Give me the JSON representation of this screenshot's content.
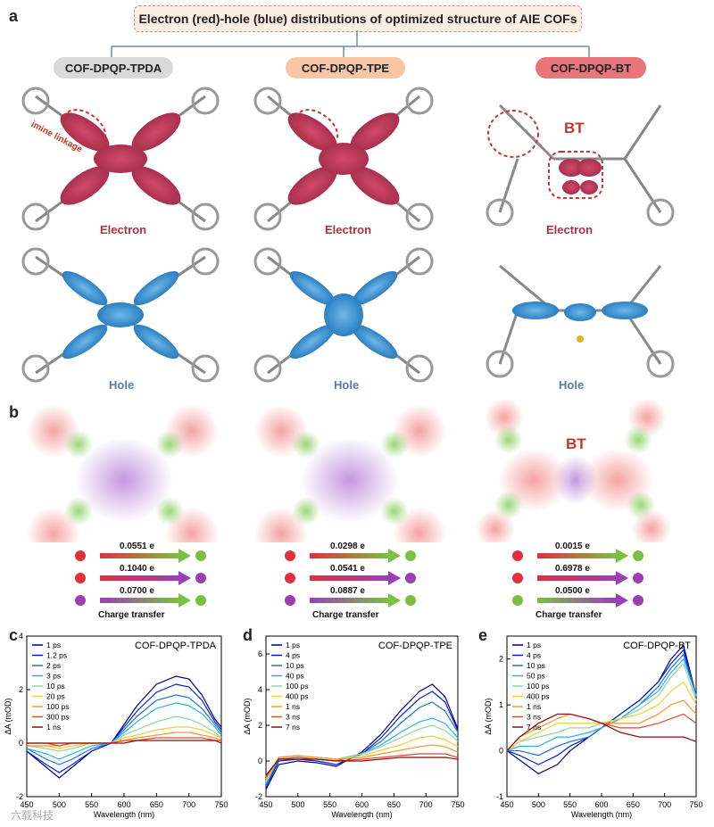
{
  "panels": {
    "a": "a",
    "b": "b",
    "c": "c",
    "d": "d",
    "e": "e"
  },
  "banner": "Electron (red)-hole (blue) distributions of optimized structure of AIE COFs",
  "cofs": [
    {
      "name": "COF-DPQP-TPDA",
      "tag_color": "#d9d9d9"
    },
    {
      "name": "COF-DPQP-TPE",
      "tag_color": "#f7c6a5"
    },
    {
      "name": "COF-DPQP-BT",
      "tag_color": "#e8747c"
    }
  ],
  "labels": {
    "electron": "Electron",
    "hole": "Hole",
    "imine": "imine linkage",
    "bt": "BT",
    "charge_transfer": "Charge transfer"
  },
  "transfers": [
    [
      "0.0551 e",
      "0.1040 e",
      "0.0700 e"
    ],
    [
      "0.0298 e",
      "0.0541 e",
      "0.0887 e"
    ],
    [
      "0.0015 e",
      "0.6978 e",
      "0.0500 e"
    ]
  ],
  "transfer_colors": [
    [
      [
        "#e03040",
        "#7bc043"
      ],
      [
        "#e03040",
        "#9b3fb5"
      ],
      [
        "#9b3fb5",
        "#7bc043"
      ]
    ],
    [
      [
        "#e03040",
        "#7bc043"
      ],
      [
        "#e03040",
        "#9b3fb5"
      ],
      [
        "#9b3fb5",
        "#7bc043"
      ]
    ],
    [
      [
        "#e03040",
        "#7bc043"
      ],
      [
        "#e03040",
        "#9b3fb5"
      ],
      [
        "#7bc043",
        "#9b3fb5"
      ]
    ]
  ],
  "watermark": "六载科技",
  "chart_data": [
    {
      "type": "line",
      "title": "COF-DPQP-TPDA",
      "xlabel": "Wavelength (nm)",
      "ylabel": "ΔA (mOD)",
      "xlim": [
        450,
        750
      ],
      "ylim": [
        -2,
        4
      ],
      "xticks": [
        450,
        500,
        550,
        600,
        650,
        700,
        750
      ],
      "yticks": [
        -2,
        0,
        2,
        4
      ],
      "legend_position": "top-left",
      "x": [
        450,
        480,
        500,
        520,
        550,
        580,
        600,
        620,
        650,
        680,
        700,
        720,
        740,
        750
      ],
      "series": [
        {
          "name": "1 ps",
          "color": "#000080",
          "values": [
            -0.3,
            -0.9,
            -1.3,
            -0.9,
            -0.3,
            0.0,
            0.7,
            1.4,
            2.2,
            2.5,
            2.4,
            1.8,
            0.9,
            0.6
          ]
        },
        {
          "name": "1.2 ps",
          "color": "#0022cc",
          "values": [
            -0.3,
            -0.8,
            -1.1,
            -0.8,
            -0.3,
            0.0,
            0.6,
            1.2,
            1.9,
            2.2,
            2.1,
            1.6,
            0.8,
            0.5
          ]
        },
        {
          "name": "2 ps",
          "color": "#1f6fe0",
          "values": [
            -0.2,
            -0.6,
            -0.8,
            -0.6,
            -0.2,
            0.0,
            0.5,
            1.0,
            1.6,
            1.8,
            1.7,
            1.3,
            0.7,
            0.4
          ]
        },
        {
          "name": "3 ps",
          "color": "#2ab4e6",
          "values": [
            -0.2,
            -0.4,
            -0.6,
            -0.4,
            -0.1,
            0.0,
            0.4,
            0.8,
            1.3,
            1.5,
            1.4,
            1.1,
            0.6,
            0.3
          ]
        },
        {
          "name": "10 ps",
          "color": "#8fd6a0",
          "values": [
            -0.1,
            -0.2,
            -0.3,
            -0.2,
            0.0,
            0.0,
            0.3,
            0.5,
            0.8,
            1.0,
            0.9,
            0.7,
            0.4,
            0.2
          ]
        },
        {
          "name": "20 ps",
          "color": "#e8d23a",
          "values": [
            -0.1,
            -0.1,
            -0.2,
            -0.1,
            0.0,
            0.0,
            0.2,
            0.3,
            0.5,
            0.6,
            0.6,
            0.5,
            0.3,
            0.2
          ]
        },
        {
          "name": "100 ps",
          "color": "#f29a2e",
          "values": [
            -0.1,
            -0.1,
            -0.1,
            0.0,
            0.0,
            0.0,
            0.1,
            0.2,
            0.3,
            0.4,
            0.4,
            0.3,
            0.2,
            0.1
          ]
        },
        {
          "name": "300 ps",
          "color": "#e5462b",
          "values": [
            0.0,
            0.0,
            -0.1,
            0.0,
            0.0,
            0.0,
            0.1,
            0.1,
            0.2,
            0.2,
            0.2,
            0.2,
            0.1,
            0.1
          ]
        },
        {
          "name": "1 ns",
          "color": "#8b0e0e",
          "values": [
            0.0,
            0.0,
            0.0,
            0.0,
            0.0,
            0.0,
            0.0,
            0.1,
            0.1,
            0.1,
            0.1,
            0.1,
            0.1,
            0.0
          ]
        }
      ]
    },
    {
      "type": "line",
      "title": "COF-DPQP-TPE",
      "xlabel": "Wavelength (nm)",
      "ylabel": "ΔA (mOD)",
      "xlim": [
        450,
        750
      ],
      "ylim": [
        -2,
        7
      ],
      "xticks": [
        450,
        500,
        550,
        600,
        650,
        700,
        750
      ],
      "yticks": [
        -2,
        0,
        2,
        4,
        6
      ],
      "legend_position": "top-left",
      "x": [
        450,
        470,
        500,
        530,
        560,
        600,
        630,
        660,
        690,
        710,
        730,
        750
      ],
      "series": [
        {
          "name": "1 ps",
          "color": "#000080",
          "values": [
            -1.6,
            -0.2,
            0.0,
            -0.1,
            -0.3,
            0.5,
            1.5,
            2.8,
            3.9,
            4.3,
            3.6,
            1.8
          ]
        },
        {
          "name": "4 ps",
          "color": "#0022cc",
          "values": [
            -1.5,
            0.0,
            0.1,
            0.0,
            -0.2,
            0.4,
            1.3,
            2.5,
            3.5,
            3.9,
            3.3,
            1.7
          ]
        },
        {
          "name": "10 ps",
          "color": "#1f6fe0",
          "values": [
            -1.4,
            0.1,
            0.2,
            0.1,
            0.0,
            0.4,
            1.1,
            2.1,
            3.0,
            3.3,
            2.8,
            1.6
          ]
        },
        {
          "name": "40 ps",
          "color": "#2ab4e6",
          "values": [
            -1.3,
            0.2,
            0.3,
            0.2,
            0.1,
            0.4,
            0.9,
            1.6,
            2.2,
            2.4,
            2.1,
            1.3
          ]
        },
        {
          "name": "100 ps",
          "color": "#8fd6a0",
          "values": [
            -1.2,
            0.2,
            0.3,
            0.2,
            0.1,
            0.4,
            0.8,
            1.3,
            1.8,
            2.0,
            1.7,
            1.1
          ]
        },
        {
          "name": "400 ps",
          "color": "#e8d23a",
          "values": [
            -1.1,
            0.2,
            0.3,
            0.2,
            0.1,
            0.3,
            0.6,
            0.9,
            1.3,
            1.4,
            1.2,
            0.8
          ]
        },
        {
          "name": "1 ns",
          "color": "#f29a2e",
          "values": [
            -1.0,
            0.2,
            0.3,
            0.2,
            0.1,
            0.2,
            0.4,
            0.6,
            0.8,
            0.9,
            0.8,
            0.5
          ]
        },
        {
          "name": "3 ns",
          "color": "#e5462b",
          "values": [
            -0.9,
            0.1,
            0.2,
            0.1,
            0.0,
            0.1,
            0.2,
            0.3,
            0.4,
            0.4,
            0.4,
            0.2
          ]
        },
        {
          "name": "7 ns",
          "color": "#8b0e0e",
          "values": [
            -0.8,
            0.1,
            0.1,
            0.1,
            0.0,
            0.0,
            0.1,
            0.2,
            0.2,
            0.2,
            0.2,
            0.1
          ]
        }
      ]
    },
    {
      "type": "line",
      "title": "COF-DPQP-BT",
      "xlabel": "Wavelength (nm)",
      "ylabel": "ΔA (mOD)",
      "xlim": [
        450,
        750
      ],
      "ylim": [
        -1,
        2.5
      ],
      "xticks": [
        450,
        500,
        550,
        600,
        650,
        700,
        750
      ],
      "yticks": [
        -1,
        0,
        1,
        2
      ],
      "legend_position": "top-left",
      "x": [
        450,
        470,
        500,
        530,
        550,
        580,
        600,
        630,
        660,
        690,
        710,
        730,
        750
      ],
      "series": [
        {
          "name": "1 ps",
          "color": "#000080",
          "values": [
            0.0,
            -0.2,
            -0.5,
            -0.3,
            0.0,
            0.3,
            0.5,
            0.8,
            1.1,
            1.5,
            2.0,
            2.3,
            1.2
          ]
        },
        {
          "name": "4 ps",
          "color": "#0022cc",
          "values": [
            0.0,
            -0.1,
            -0.3,
            -0.1,
            0.1,
            0.3,
            0.5,
            0.8,
            1.1,
            1.5,
            1.9,
            2.2,
            1.2
          ]
        },
        {
          "name": "10 ps",
          "color": "#1f6fe0",
          "values": [
            0.0,
            0.0,
            -0.1,
            0.1,
            0.2,
            0.3,
            0.5,
            0.7,
            1.0,
            1.4,
            1.8,
            2.1,
            1.2
          ]
        },
        {
          "name": "50 ps",
          "color": "#2ab4e6",
          "values": [
            0.0,
            0.1,
            0.1,
            0.3,
            0.3,
            0.4,
            0.5,
            0.7,
            1.0,
            1.3,
            1.7,
            2.0,
            1.2
          ]
        },
        {
          "name": "100 ps",
          "color": "#8fd6a0",
          "values": [
            0.0,
            0.2,
            0.3,
            0.4,
            0.5,
            0.5,
            0.6,
            0.7,
            0.9,
            1.2,
            1.6,
            1.9,
            1.1
          ]
        },
        {
          "name": "400 ps",
          "color": "#e8d23a",
          "values": [
            0.0,
            0.2,
            0.4,
            0.6,
            0.6,
            0.6,
            0.6,
            0.7,
            0.8,
            1.0,
            1.3,
            1.5,
            1.0
          ]
        },
        {
          "name": "1 ns",
          "color": "#f29a2e",
          "values": [
            0.0,
            0.3,
            0.5,
            0.7,
            0.8,
            0.7,
            0.6,
            0.6,
            0.6,
            0.8,
            1.0,
            1.1,
            0.8
          ]
        },
        {
          "name": "3 ns",
          "color": "#e5462b",
          "values": [
            0.0,
            0.3,
            0.6,
            0.8,
            0.8,
            0.7,
            0.6,
            0.5,
            0.5,
            0.6,
            0.7,
            0.8,
            0.6
          ]
        },
        {
          "name": "7 ns",
          "color": "#8b0e0e",
          "values": [
            0.0,
            0.3,
            0.6,
            0.8,
            0.8,
            0.7,
            0.6,
            0.4,
            0.3,
            0.3,
            0.3,
            0.3,
            0.2
          ]
        }
      ]
    }
  ]
}
